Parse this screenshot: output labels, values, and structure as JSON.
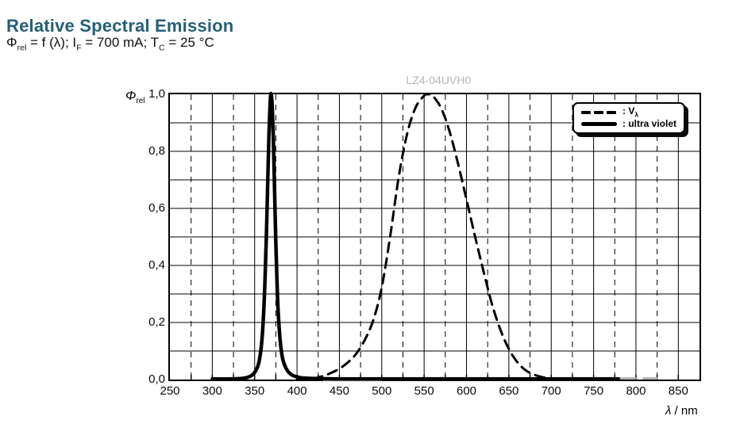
{
  "header": {
    "title": "Relative Spectral Emission",
    "title_color": "#235f78",
    "subtitle_segments": [
      {
        "text": "Φ"
      },
      {
        "text": "rel",
        "sub": true
      },
      {
        "text": " = f (λ); I"
      },
      {
        "text": "F",
        "sub": true
      },
      {
        "text": " = 700 mA; T"
      },
      {
        "text": "C",
        "sub": true
      },
      {
        "text": " = 25 °C"
      }
    ]
  },
  "chart_data": {
    "type": "line",
    "title": "Relative Spectral Emission",
    "subtitle": "Phi_rel = f(lambda); I_F = 700 mA; T_C = 25 °C",
    "watermark": "LZ4-04UVH0",
    "xlabel_segments": [
      {
        "text": "λ",
        "italic": true
      },
      {
        "text": " / nm"
      }
    ],
    "ylabel_segments": [
      {
        "text": "Φ",
        "italic": true
      },
      {
        "text": "rel",
        "sub": true
      }
    ],
    "xlim": [
      250,
      875
    ],
    "ylim": [
      0,
      1
    ],
    "grid_on": true,
    "legend_position": "top-right",
    "x_tick_labels": [
      {
        "nm": 250,
        "label": "250"
      },
      {
        "nm": 300,
        "label": "300"
      },
      {
        "nm": 350,
        "label": "350"
      },
      {
        "nm": 400,
        "label": "400"
      },
      {
        "nm": 450,
        "label": "450"
      },
      {
        "nm": 500,
        "label": "500"
      },
      {
        "nm": 550,
        "label": "550"
      },
      {
        "nm": 600,
        "label": "600"
      },
      {
        "nm": 650,
        "label": "650"
      },
      {
        "nm": 700,
        "label": "700"
      },
      {
        "nm": 750,
        "label": "750"
      },
      {
        "nm": 800,
        "label": "800"
      },
      {
        "nm": 850,
        "label": "850"
      }
    ],
    "y_tick_labels": [
      {
        "v": 0.0,
        "label": "0,0"
      },
      {
        "v": 0.2,
        "label": "0,2"
      },
      {
        "v": 0.4,
        "label": "0,4"
      },
      {
        "v": 0.6,
        "label": "0,6"
      },
      {
        "v": 0.8,
        "label": "0,8"
      },
      {
        "v": 1.0,
        "label": "1,0"
      }
    ],
    "grid": {
      "x_solid_nm": [
        300,
        350,
        400,
        450,
        500,
        550,
        600,
        650,
        700,
        750,
        800,
        850
      ],
      "x_dashed_nm": [
        275,
        325,
        375,
        425,
        475,
        525,
        575,
        625,
        675,
        725,
        775,
        825
      ],
      "y_solid": [
        0.1,
        0.2,
        0.3,
        0.4,
        0.5,
        0.6,
        0.7,
        0.8,
        0.9
      ],
      "x_tick_marks_nm": [
        275,
        300,
        325,
        350,
        375,
        400,
        425,
        450,
        475,
        500,
        525,
        550,
        575,
        600,
        625,
        650,
        675,
        700,
        725,
        750,
        775,
        800,
        825,
        850
      ]
    },
    "legend": {
      "items": [
        {
          "name": "v-lambda",
          "style": "dashed",
          "label_segments": [
            {
              "text": ": V"
            },
            {
              "text": "λ",
              "sub": true
            }
          ]
        },
        {
          "name": "ultra-violet",
          "style": "solid",
          "label_segments": [
            {
              "text": ": ultra violet"
            }
          ]
        }
      ]
    },
    "series": [
      {
        "name": "V_lambda",
        "style": "dashed",
        "stroke_width": 3,
        "dash": "12 8",
        "points": [
          [
            400,
            0.0004
          ],
          [
            410,
            0.0012
          ],
          [
            420,
            0.004
          ],
          [
            430,
            0.0116
          ],
          [
            440,
            0.023
          ],
          [
            450,
            0.038
          ],
          [
            460,
            0.06
          ],
          [
            470,
            0.091
          ],
          [
            480,
            0.139
          ],
          [
            490,
            0.208
          ],
          [
            500,
            0.323
          ],
          [
            510,
            0.503
          ],
          [
            520,
            0.71
          ],
          [
            530,
            0.862
          ],
          [
            540,
            0.954
          ],
          [
            550,
            0.995
          ],
          [
            555,
            1.0
          ],
          [
            560,
            0.995
          ],
          [
            570,
            0.952
          ],
          [
            580,
            0.87
          ],
          [
            590,
            0.757
          ],
          [
            600,
            0.631
          ],
          [
            610,
            0.503
          ],
          [
            620,
            0.381
          ],
          [
            630,
            0.265
          ],
          [
            640,
            0.175
          ],
          [
            650,
            0.107
          ],
          [
            660,
            0.061
          ],
          [
            670,
            0.032
          ],
          [
            680,
            0.017
          ],
          [
            690,
            0.0082
          ],
          [
            700,
            0.0041
          ],
          [
            710,
            0.0021
          ]
        ]
      },
      {
        "name": "ultra violet",
        "style": "solid",
        "stroke_width": 4.5,
        "peak_nm": 369,
        "points": [
          [
            300,
            0.002
          ],
          [
            320,
            0.002
          ],
          [
            335,
            0.004
          ],
          [
            342,
            0.008
          ],
          [
            348,
            0.018
          ],
          [
            352,
            0.035
          ],
          [
            355,
            0.06
          ],
          [
            358,
            0.12
          ],
          [
            360,
            0.2
          ],
          [
            362,
            0.33
          ],
          [
            364,
            0.52
          ],
          [
            366,
            0.76
          ],
          [
            367,
            0.87
          ],
          [
            368,
            0.95
          ],
          [
            369,
            1.0
          ],
          [
            370,
            0.99
          ],
          [
            371,
            0.94
          ],
          [
            372,
            0.85
          ],
          [
            373,
            0.73
          ],
          [
            374,
            0.6
          ],
          [
            375,
            0.48
          ],
          [
            376,
            0.38
          ],
          [
            377,
            0.29
          ],
          [
            378,
            0.225
          ],
          [
            380,
            0.14
          ],
          [
            382,
            0.09
          ],
          [
            384,
            0.062
          ],
          [
            387,
            0.04
          ],
          [
            390,
            0.026
          ],
          [
            394,
            0.016
          ],
          [
            398,
            0.011
          ],
          [
            405,
            0.006
          ],
          [
            415,
            0.004
          ],
          [
            430,
            0.003
          ],
          [
            460,
            0.002
          ],
          [
            520,
            0.002
          ],
          [
            600,
            0.002
          ],
          [
            700,
            0.002
          ],
          [
            780,
            0.002
          ]
        ]
      }
    ],
    "gray_tail_segments_nm": [
      [
        781,
        802
      ],
      [
        808,
        826
      ]
    ],
    "gray_under_segment_nm": [
      431,
      500
    ],
    "colors": {
      "curves": "#000000",
      "grid": "#000000",
      "gray_remnant": "#a8a8a8",
      "watermark": "#b5b5b5",
      "title": "#235f78"
    }
  }
}
